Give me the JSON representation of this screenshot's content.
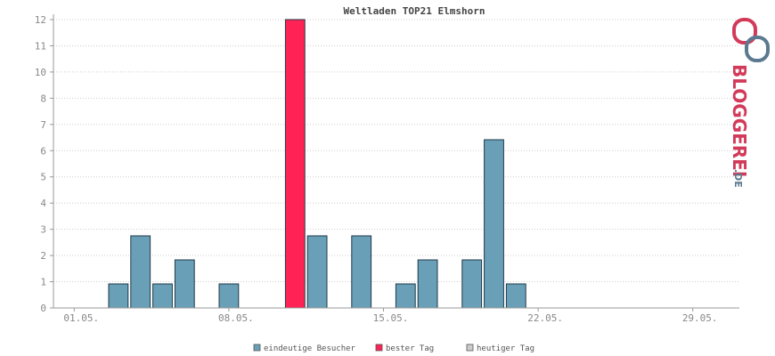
{
  "chart_data": {
    "type": "bar",
    "title": "Weltladen TOP21 Elmshorn",
    "x": [
      1,
      2,
      3,
      4,
      5,
      6,
      7,
      8,
      9,
      10,
      11,
      12,
      13,
      14,
      15,
      16,
      17,
      18,
      19,
      20,
      21,
      22,
      23,
      24,
      25,
      26,
      27,
      28,
      29,
      30,
      31
    ],
    "x_tick_labels": [
      {
        "day": 1,
        "label": "01.05."
      },
      {
        "day": 8,
        "label": "08.05."
      },
      {
        "day": 15,
        "label": "15.05."
      },
      {
        "day": 22,
        "label": "22.05."
      },
      {
        "day": 29,
        "label": "29.05."
      }
    ],
    "y_tick_labels": [
      "0",
      "1",
      "2",
      "3",
      "4",
      "5",
      "6",
      "7",
      "8",
      "10",
      "11",
      "12"
    ],
    "series": [
      {
        "name": "eindeutige Besucher",
        "values": [
          0,
          0,
          1,
          3,
          1,
          2,
          0,
          1,
          0,
          0,
          0,
          3,
          0,
          3,
          0,
          1,
          2,
          0,
          2,
          7,
          1,
          0,
          0,
          0,
          0,
          0,
          0,
          0,
          0,
          0,
          0
        ]
      },
      {
        "name": "bester Tag",
        "values": [
          0,
          0,
          0,
          0,
          0,
          0,
          0,
          0,
          0,
          0,
          12,
          0,
          0,
          0,
          0,
          0,
          0,
          0,
          0,
          0,
          0,
          0,
          0,
          0,
          0,
          0,
          0,
          0,
          0,
          0,
          0
        ]
      }
    ],
    "legend": [
      {
        "label": "eindeutige Besucher",
        "color": "#6a9fb8"
      },
      {
        "label": "bester Tag",
        "color": "#ff2255"
      },
      {
        "label": "heutiger Tag",
        "color": "#cccccc"
      }
    ],
    "grid": true,
    "legend_position": "bottom",
    "colors": {
      "visitors": "#6a9fb8",
      "best": "#ff2255",
      "today": "#cccccc",
      "bar_stroke": "#1e3a48"
    }
  },
  "logo": {
    "text": "BLOGGEREI",
    "suffix": ".DE",
    "colors": {
      "red": "#d23a5a",
      "slate": "#5b7a90"
    }
  }
}
